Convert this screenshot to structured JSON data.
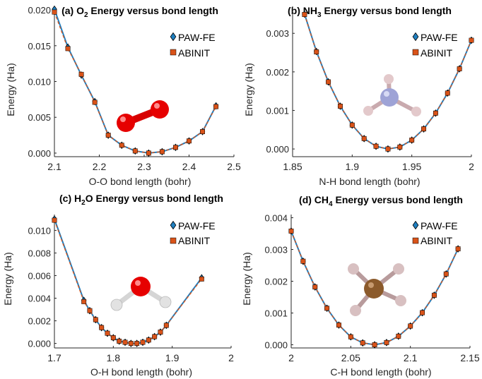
{
  "colors": {
    "paw": "#1f7fc0",
    "abinit": "#d95319",
    "axis": "#262626",
    "marker_edge": "#000000"
  },
  "chart_data": [
    {
      "type": "line",
      "title_prefix": "(a) O",
      "title_sub": "2",
      "title_suffix": " Energy versus bond length",
      "xlabel": "O-O bond length (bohr)",
      "ylabel": "Energy (Ha)",
      "xlim": [
        2.1,
        2.5
      ],
      "ylim": [
        -0.0005,
        0.0205
      ],
      "xticks": [
        2.1,
        2.2,
        2.3,
        2.4,
        2.5
      ],
      "xtick_labels": [
        "2.1",
        "2.2",
        "2.3",
        "2.4",
        "2.5"
      ],
      "yticks": [
        0,
        0.005,
        0.01,
        0.015,
        0.02
      ],
      "ytick_labels": [
        "0.000",
        "0.005",
        "0.010",
        "0.015",
        "0.020"
      ],
      "legend_position": "top-right",
      "molecule": "O2 molecule ball-and-stick model",
      "series": [
        {
          "name": "PAW-FE",
          "marker": "diamond",
          "x": [
            2.1,
            2.13,
            2.16,
            2.19,
            2.22,
            2.25,
            2.28,
            2.31,
            2.34,
            2.37,
            2.4,
            2.43,
            2.46
          ],
          "y": [
            0.0201,
            0.0148,
            0.0109,
            0.0072,
            0.0025,
            0.0011,
            0.0003,
            0.0,
            0.0002,
            0.0008,
            0.0017,
            0.003,
            0.0066
          ]
        },
        {
          "name": "ABINIT",
          "marker": "square",
          "x": [
            2.1,
            2.13,
            2.16,
            2.19,
            2.22,
            2.25,
            2.28,
            2.31,
            2.34,
            2.37,
            2.4,
            2.43,
            2.46
          ],
          "y": [
            0.0197,
            0.0146,
            0.011,
            0.0071,
            0.0025,
            0.0011,
            0.0003,
            0.0,
            0.0002,
            0.0008,
            0.0017,
            0.003,
            0.0065
          ]
        }
      ]
    },
    {
      "type": "line",
      "title_prefix": "(b) NH",
      "title_sub": "3",
      "title_suffix": " Energy versus bond length",
      "xlabel": "N-H bond length (bohr)",
      "ylabel": "Energy (Ha)",
      "xlim": [
        1.85,
        2.0
      ],
      "ylim": [
        -0.0002,
        0.0037
      ],
      "xticks": [
        1.85,
        1.9,
        1.95,
        2.0
      ],
      "xtick_labels": [
        "1.85",
        "1.9",
        "1.95",
        "2"
      ],
      "yticks": [
        0,
        0.001,
        0.002,
        0.003
      ],
      "ytick_labels": [
        "0.000",
        "0.001",
        "0.002",
        "0.003"
      ],
      "legend_position": "top-right",
      "molecule": "NH3 molecule ball-and-stick model",
      "series": [
        {
          "name": "PAW-FE",
          "marker": "diamond",
          "x": [
            1.86,
            1.87,
            1.88,
            1.89,
            1.9,
            1.91,
            1.92,
            1.93,
            1.94,
            1.95,
            1.96,
            1.97,
            1.98,
            1.99,
            2.0
          ],
          "y": [
            0.0035,
            0.00253,
            0.00174,
            0.00111,
            0.00062,
            0.00027,
            7e-05,
            0.0,
            5e-05,
            0.00023,
            0.00052,
            0.00093,
            0.00145,
            0.00208,
            0.00282
          ]
        },
        {
          "name": "ABINIT",
          "marker": "square",
          "x": [
            1.86,
            1.87,
            1.88,
            1.89,
            1.9,
            1.91,
            1.92,
            1.93,
            1.94,
            1.95,
            1.96,
            1.97,
            1.98,
            1.99,
            2.0
          ],
          "y": [
            0.00349,
            0.00252,
            0.00174,
            0.00111,
            0.00062,
            0.00027,
            7e-05,
            0.0,
            5e-05,
            0.00023,
            0.00052,
            0.00093,
            0.00145,
            0.00208,
            0.00282
          ]
        }
      ]
    },
    {
      "type": "line",
      "title_prefix": "(c) H",
      "title_sub": "2",
      "title_suffix": "O Energy versus bond length",
      "xlabel": "O-H bond length (bohr)",
      "ylabel": "Energy (Ha)",
      "xlim": [
        1.7,
        2.0
      ],
      "ylim": [
        -0.0004,
        0.0114
      ],
      "xticks": [
        1.7,
        1.8,
        1.9,
        2.0
      ],
      "xtick_labels": [
        "1.7",
        "1.8",
        "1.9",
        "2"
      ],
      "yticks": [
        0,
        0.002,
        0.004,
        0.006,
        0.008,
        0.01
      ],
      "ytick_labels": [
        "0.000",
        "0.002",
        "0.004",
        "0.006",
        "0.008",
        "0.010"
      ],
      "legend_position": "top-right",
      "molecule": "H2O molecule ball-and-stick model",
      "series": [
        {
          "name": "PAW-FE",
          "marker": "diamond",
          "x": [
            1.7,
            1.75,
            1.76,
            1.77,
            1.78,
            1.79,
            1.8,
            1.81,
            1.82,
            1.83,
            1.84,
            1.85,
            1.86,
            1.87,
            1.88,
            1.89,
            1.95
          ],
          "y": [
            0.011,
            0.0038,
            0.0029,
            0.0021,
            0.0014,
            0.0009,
            0.0005,
            0.0002,
            0.0001,
            0.0,
            0.0,
            0.0001,
            0.0003,
            0.0006,
            0.001,
            0.0016,
            0.0058
          ]
        },
        {
          "name": "ABINIT",
          "marker": "square",
          "x": [
            1.7,
            1.75,
            1.76,
            1.77,
            1.78,
            1.79,
            1.8,
            1.81,
            1.82,
            1.83,
            1.84,
            1.85,
            1.86,
            1.87,
            1.88,
            1.89,
            1.95
          ],
          "y": [
            0.0109,
            0.0037,
            0.0029,
            0.0021,
            0.0014,
            0.0009,
            0.0005,
            0.0002,
            0.0001,
            0.0,
            0.0,
            0.0001,
            0.0003,
            0.0006,
            0.001,
            0.0016,
            0.0057
          ]
        }
      ]
    },
    {
      "type": "line",
      "title_prefix": "(d) CH",
      "title_sub": "4",
      "title_suffix": " Energy versus bond length",
      "xlabel": "C-H bond length (bohr)",
      "ylabel": "Energy (Ha)",
      "xlim": [
        2.0,
        2.15
      ],
      "ylim": [
        -0.0001,
        0.0041
      ],
      "xticks": [
        2.0,
        2.05,
        2.1,
        2.15
      ],
      "xtick_labels": [
        "2",
        "2.05",
        "2.1",
        "2.15"
      ],
      "yticks": [
        0,
        0.001,
        0.002,
        0.003,
        0.004
      ],
      "ytick_labels": [
        "0.000",
        "0.001",
        "0.002",
        "0.003",
        "0.004"
      ],
      "legend_position": "top-right",
      "molecule": "CH4 molecule ball-and-stick model",
      "series": [
        {
          "name": "PAW-FE",
          "marker": "diamond",
          "x": [
            2.0,
            2.01,
            2.02,
            2.03,
            2.04,
            2.05,
            2.06,
            2.07,
            2.08,
            2.09,
            2.1,
            2.11,
            2.12,
            2.13,
            2.14
          ],
          "y": [
            0.00358,
            0.00263,
            0.00182,
            0.00115,
            0.00062,
            0.00025,
            6e-05,
            0.0,
            7e-05,
            0.00027,
            0.00059,
            0.00101,
            0.00156,
            0.00223,
            0.00302
          ]
        },
        {
          "name": "ABINIT",
          "marker": "square",
          "x": [
            2.0,
            2.01,
            2.02,
            2.03,
            2.04,
            2.05,
            2.06,
            2.07,
            2.08,
            2.09,
            2.1,
            2.11,
            2.12,
            2.13,
            2.14
          ],
          "y": [
            0.00358,
            0.00263,
            0.00182,
            0.00115,
            0.00062,
            0.00025,
            6e-05,
            0.0,
            7e-05,
            0.00027,
            0.00059,
            0.00101,
            0.00156,
            0.00223,
            0.00302
          ]
        }
      ]
    }
  ]
}
